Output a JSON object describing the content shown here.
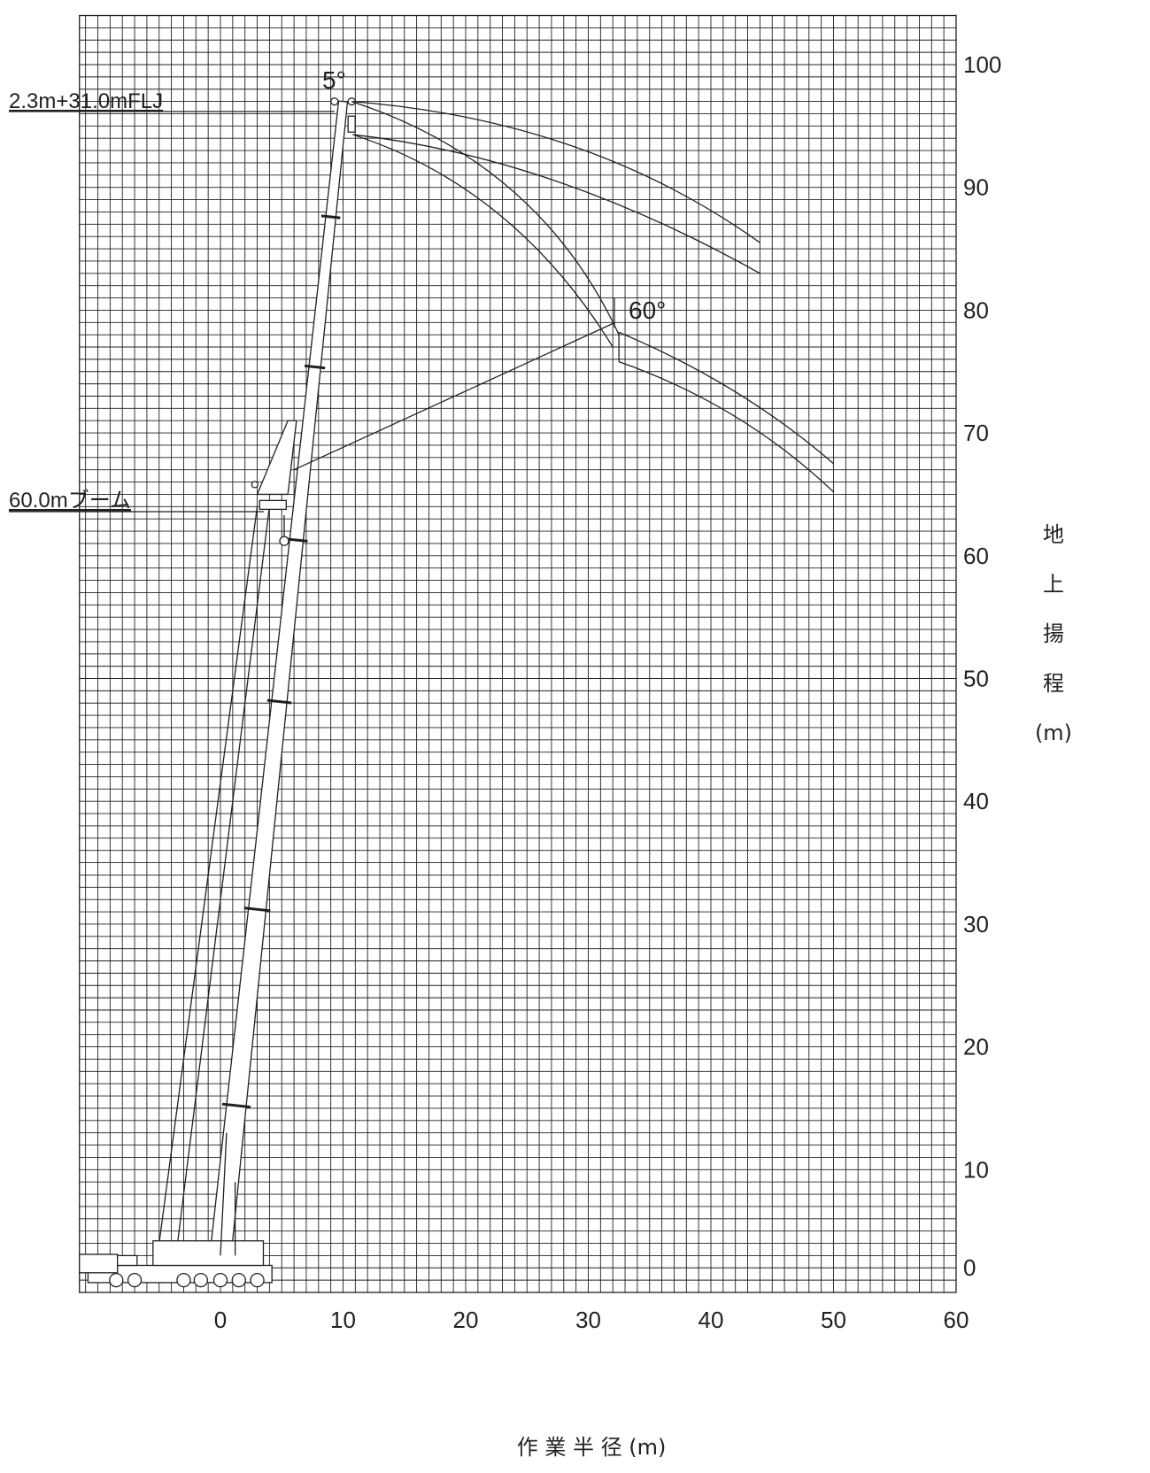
{
  "chart_data": {
    "type": "diagram",
    "x_axis": {
      "title": "作 業 半 径 (m)",
      "ticks": [
        "0",
        "10",
        "20",
        "30",
        "40",
        "50",
        "60"
      ],
      "range": [
        -11.5,
        60
      ],
      "minor_step": 1
    },
    "y_axis": {
      "title_chars": [
        "地",
        "上",
        "揚",
        "程",
        "(m)"
      ],
      "ticks": [
        "0",
        "10",
        "20",
        "30",
        "40",
        "50",
        "60",
        "70",
        "80",
        "90",
        "100"
      ],
      "range": [
        0,
        104
      ],
      "minor_step": 1
    },
    "labels": {
      "jib": "2.3m+31.0mFLJ",
      "boom": "60.0mブーム",
      "angle_min": "5°",
      "angle_max": "60°"
    },
    "boom": {
      "foot": [
        0,
        3
      ],
      "head": [
        10,
        97
      ]
    },
    "jib_configurations": [
      {
        "offset": "5°",
        "tip": [
          44,
          85.5
        ]
      },
      {
        "offset": "5°",
        "tip": [
          44,
          83
        ]
      },
      {
        "offset": "60°",
        "tip": [
          50,
          67.5
        ]
      },
      {
        "offset": "60°",
        "tip": [
          50,
          65.2
        ]
      }
    ]
  }
}
